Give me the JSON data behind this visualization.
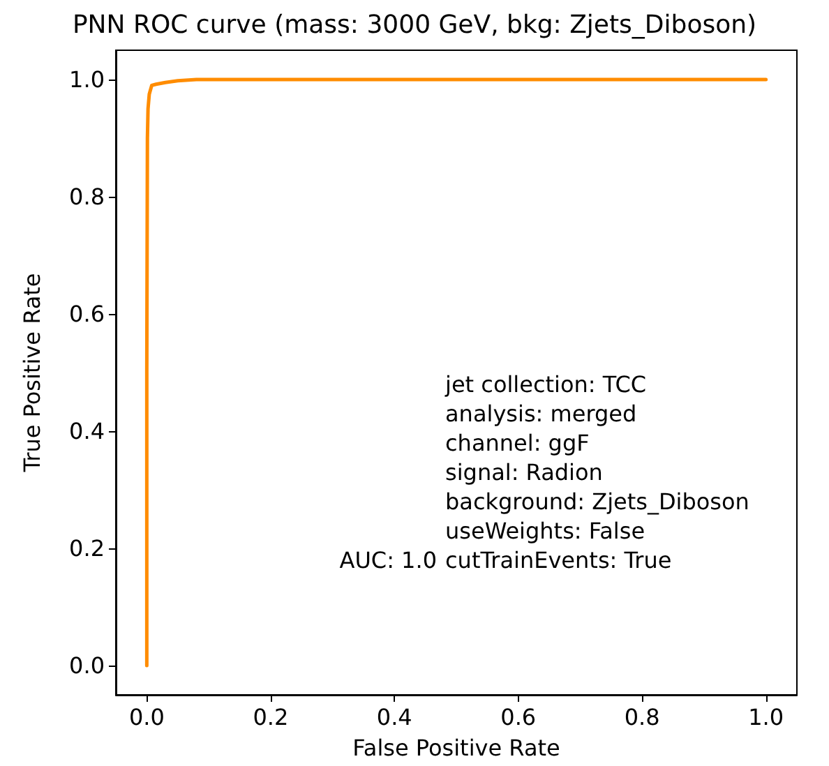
{
  "chart_data": {
    "type": "line",
    "title": "PNN ROC curve (mass: 3000 GeV, bkg: Zjets_Diboson)",
    "xlabel": "False Positive Rate",
    "ylabel": "True Positive Rate",
    "series": [
      {
        "color": "#ff8c00",
        "x": [
          0,
          0,
          0.001,
          0.002,
          0.004,
          0.008,
          0.015,
          0.03,
          0.05,
          0.08,
          0.2,
          0.5,
          1.0
        ],
        "values": [
          0,
          0.5,
          0.9,
          0.95,
          0.975,
          0.99,
          0.992,
          0.995,
          0.998,
          1.0,
          1.0,
          1.0,
          1.0
        ]
      }
    ],
    "xlim": [
      -0.05,
      1.05
    ],
    "ylim": [
      -0.05,
      1.05
    ],
    "xticks": [
      {
        "value": 0,
        "label": "0.0"
      },
      0.2,
      0.4,
      0.6,
      0.8,
      {
        "value": 1,
        "label": "1.0"
      }
    ],
    "yticks": [
      {
        "value": 0,
        "label": "0.0"
      },
      0.2,
      0.4,
      0.6,
      0.8,
      {
        "value": 1,
        "label": "1.0"
      }
    ],
    "annotations": [
      "AUC: 1.0",
      "jet collection: TCC\nanalysis: merged\nchannel: ggF\nsignal: Radion\nbackground: Zjets_Diboson\nuseWeights: False\ncutTrainEvents: True"
    ],
    "grid": false,
    "marker": "none",
    "line_style": "solid"
  }
}
